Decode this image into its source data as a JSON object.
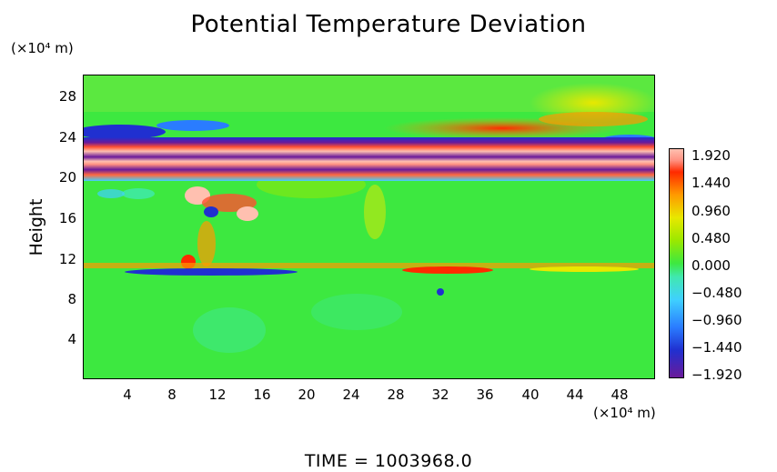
{
  "chart_data": {
    "type": "heatmap",
    "title": "Potential Temperature Deviation",
    "ylabel": "Height",
    "x_unit_label": "(×10⁴ m)",
    "y_unit_label": "(×10⁴ m)",
    "footer": "TIME  =  1003968.0",
    "xlim": [
      0,
      51
    ],
    "ylim": [
      0,
      30
    ],
    "x_ticks": [
      "4",
      "8",
      "12",
      "16",
      "20",
      "24",
      "28",
      "32",
      "36",
      "40",
      "44",
      "48"
    ],
    "y_ticks": [
      "4",
      "8",
      "12",
      "16",
      "20",
      "24",
      "28"
    ],
    "colorbar": {
      "labels": [
        "1.920",
        "1.440",
        "0.960",
        "0.480",
        "0.000",
        "−0.480",
        "−0.960",
        "−1.440",
        "−1.920"
      ],
      "range": [
        -1.92,
        1.92
      ]
    },
    "colors": {
      "background_field": "#3de840",
      "strong_negative": "#6a1a9a",
      "strong_positive": "#ffc0b0"
    }
  }
}
